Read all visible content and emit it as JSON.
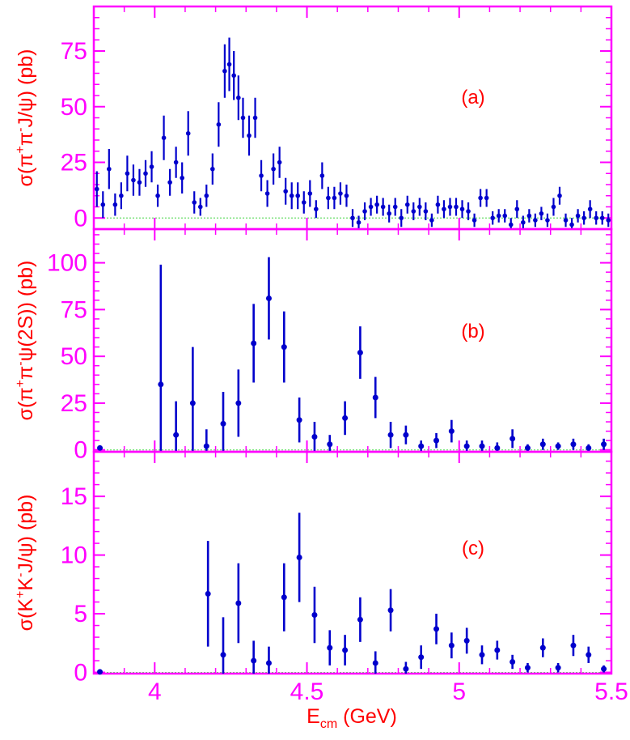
{
  "colors": {
    "frame": "#ff00ff",
    "ticks_text": "#ff00ff",
    "axis_title": "#ff0000",
    "panel_label": "#ff0000",
    "data": "#0000cc",
    "zero_line": "#66dd66"
  },
  "xaxis": {
    "label_main": "E",
    "label_sub": "cm",
    "label_rest": " (GeV)",
    "range": [
      3.8,
      5.5
    ],
    "ticks": [
      "4",
      "4.5",
      "5",
      "5.5"
    ]
  },
  "panels": [
    {
      "tag": "(a)",
      "ylabel_parts": [
        "σ(π",
        "+",
        "π",
        "-",
        "J/ψ) (pb)"
      ],
      "ylim": [
        -5,
        95
      ],
      "yticks": [
        "0",
        "25",
        "50",
        "75"
      ]
    },
    {
      "tag": "(b)",
      "ylabel_parts": [
        "σ(π",
        "+",
        "π",
        "-",
        "ψ(2S)) (pb)"
      ],
      "ylim": [
        -1,
        118
      ],
      "yticks": [
        "0",
        "25",
        "50",
        "75",
        "100"
      ]
    },
    {
      "tag": "(c)",
      "ylabel_parts": [
        "σ(K",
        "+",
        "K",
        "-",
        "J/ψ) (pb)"
      ],
      "ylim": [
        -0.1,
        18.8
      ],
      "yticks": [
        "0",
        "5",
        "10",
        "15"
      ]
    }
  ],
  "chart_data": [
    {
      "type": "scatter",
      "title": "(a)",
      "ylabel": "σ(π+π-J/ψ) (pb)",
      "xlabel": "Ecm (GeV)",
      "xlim": [
        3.8,
        5.5
      ],
      "ylim": [
        -5,
        95
      ],
      "series": [
        {
          "x": [
            3.81,
            3.83,
            3.85,
            3.87,
            3.89,
            3.91,
            3.93,
            3.95,
            3.97,
            3.99,
            4.01,
            4.03,
            4.05,
            4.07,
            4.09,
            4.11,
            4.13,
            4.15,
            4.17,
            4.19,
            4.21,
            4.23,
            4.245,
            4.26,
            4.275,
            4.29,
            4.31,
            4.33,
            4.35,
            4.37,
            4.39,
            4.41,
            4.43,
            4.45,
            4.47,
            4.49,
            4.51,
            4.53,
            4.55,
            4.57,
            4.59,
            4.61,
            4.63,
            4.65,
            4.67,
            4.69,
            4.71,
            4.73,
            4.75,
            4.77,
            4.79,
            4.81,
            4.83,
            4.85,
            4.87,
            4.89,
            4.91,
            4.93,
            4.95,
            4.97,
            4.99,
            5.01,
            5.03,
            5.05,
            5.07,
            5.09,
            5.11,
            5.13,
            5.15,
            5.17,
            5.19,
            5.21,
            5.23,
            5.25,
            5.27,
            5.29,
            5.31,
            5.33,
            5.35,
            5.37,
            5.39,
            5.41,
            5.43,
            5.45,
            5.47,
            5.49
          ],
          "y": [
            13,
            6,
            22,
            6,
            10,
            20,
            17,
            16,
            20,
            23,
            10,
            36,
            16,
            25,
            18,
            38,
            7,
            5,
            10,
            22,
            42,
            66,
            69,
            64,
            54,
            45,
            37,
            45,
            19,
            11,
            22,
            25,
            12,
            10,
            10,
            7,
            11,
            4,
            19,
            9,
            9,
            11,
            10,
            0,
            -2,
            3,
            5,
            6,
            5,
            2,
            5,
            0,
            6,
            3,
            5,
            3,
            -1,
            6,
            4,
            5,
            5,
            4,
            3,
            -1,
            9,
            9,
            0,
            1,
            1,
            -3,
            4,
            -2,
            1,
            -1,
            2,
            -1,
            5,
            10,
            -1,
            -3,
            1,
            0,
            4,
            0,
            0,
            -1
          ],
          "err": [
            8,
            6,
            9,
            5,
            6,
            8,
            7,
            6,
            6,
            7,
            5,
            10,
            6,
            7,
            7,
            10,
            5,
            4,
            5,
            7,
            10,
            12,
            12,
            11,
            10,
            9,
            9,
            9,
            7,
            6,
            7,
            7,
            6,
            6,
            6,
            5,
            6,
            4,
            6,
            5,
            5,
            5,
            5,
            4,
            3,
            4,
            4,
            4,
            4,
            4,
            4,
            4,
            4,
            4,
            4,
            4,
            3,
            4,
            4,
            4,
            4,
            4,
            4,
            3,
            4,
            4,
            3,
            3,
            3,
            3,
            4,
            3,
            3,
            3,
            3,
            3,
            4,
            4,
            3,
            3,
            3,
            3,
            4,
            3,
            3,
            3
          ]
        }
      ]
    },
    {
      "type": "scatter",
      "title": "(b)",
      "ylabel": "σ(π+π-ψ(2S)) (pb)",
      "xlabel": "Ecm (GeV)",
      "xlim": [
        3.8,
        5.5
      ],
      "ylim": [
        -1,
        118
      ],
      "series": [
        {
          "x": [
            3.82,
            4.02,
            4.07,
            4.125,
            4.17,
            4.225,
            4.275,
            4.325,
            4.375,
            4.425,
            4.475,
            4.525,
            4.575,
            4.625,
            4.675,
            4.725,
            4.775,
            4.825,
            4.875,
            4.925,
            4.975,
            5.025,
            5.075,
            5.125,
            5.175,
            5.225,
            5.275,
            5.325,
            5.375,
            5.425,
            5.475
          ],
          "y": [
            1,
            35,
            8,
            25,
            2,
            14,
            25,
            57,
            81,
            55,
            16,
            7,
            3,
            17,
            52,
            28,
            8,
            8,
            2,
            5,
            10,
            2,
            2,
            1,
            6,
            1,
            3,
            2,
            3,
            1,
            3
          ],
          "err": [
            1,
            64,
            18,
            30,
            9,
            17,
            18,
            21,
            22,
            19,
            12,
            8,
            5,
            9,
            14,
            11,
            7,
            5,
            3,
            4,
            6,
            3,
            3,
            3,
            5,
            2,
            3,
            2,
            3,
            2,
            3
          ]
        }
      ]
    },
    {
      "type": "scatter",
      "title": "(c)",
      "ylabel": "σ(K+K-J/ψ) (pb)",
      "xlabel": "Ecm (GeV)",
      "xlim": [
        3.8,
        5.5
      ],
      "ylim": [
        -0.1,
        18.8
      ],
      "series": [
        {
          "x": [
            3.82,
            4.175,
            4.225,
            4.275,
            4.325,
            4.375,
            4.425,
            4.475,
            4.525,
            4.575,
            4.625,
            4.675,
            4.725,
            4.775,
            4.825,
            4.875,
            4.925,
            4.975,
            5.025,
            5.075,
            5.125,
            5.175,
            5.225,
            5.275,
            5.325,
            5.375,
            5.425,
            5.475
          ],
          "y": [
            0.05,
            6.7,
            1.5,
            5.9,
            1.0,
            0.8,
            6.4,
            9.8,
            4.9,
            2.1,
            1.9,
            4.5,
            0.8,
            5.3,
            0.3,
            1.3,
            3.7,
            2.3,
            2.7,
            1.5,
            1.9,
            0.9,
            0.4,
            2.1,
            0.4,
            2.3,
            1.5,
            0.3
          ],
          "err": [
            0.05,
            4.5,
            3.2,
            3.4,
            1.7,
            1.4,
            2.9,
            3.8,
            2.4,
            1.5,
            1.3,
            1.9,
            1.0,
            1.8,
            0.6,
            1.0,
            1.3,
            1.1,
            1.1,
            0.8,
            0.8,
            0.6,
            0.4,
            0.8,
            0.4,
            0.9,
            0.7,
            0.3
          ]
        }
      ]
    }
  ]
}
